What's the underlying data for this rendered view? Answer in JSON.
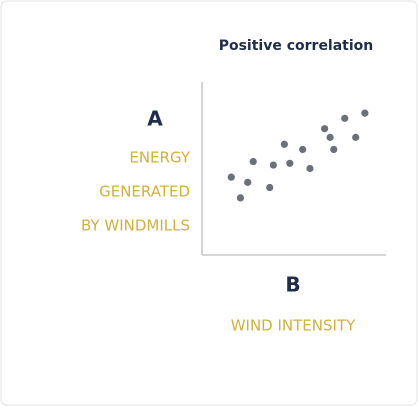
{
  "chart_data": {
    "type": "scatter",
    "title": "Positive correlation",
    "y_axis_letter": "A",
    "y_label": [
      "ENERGY",
      "GENERATED",
      "BY WINDMILLS"
    ],
    "x_axis_letter": "B",
    "x_label": "WIND INTENSITY",
    "x": [
      1.6,
      2.1,
      2.5,
      2.8,
      3.7,
      3.9,
      4.5,
      4.8,
      5.5,
      5.9,
      6.7,
      7.0,
      7.2,
      7.8,
      8.4,
      8.9
    ],
    "values": [
      4.5,
      3.3,
      4.2,
      5.4,
      3.9,
      5.2,
      6.4,
      5.3,
      6.1,
      5.0,
      7.3,
      6.8,
      6.1,
      7.9,
      6.8,
      8.2
    ],
    "color": "#6b7079",
    "xlim": [
      0,
      10
    ],
    "ylim": [
      0,
      10
    ]
  }
}
